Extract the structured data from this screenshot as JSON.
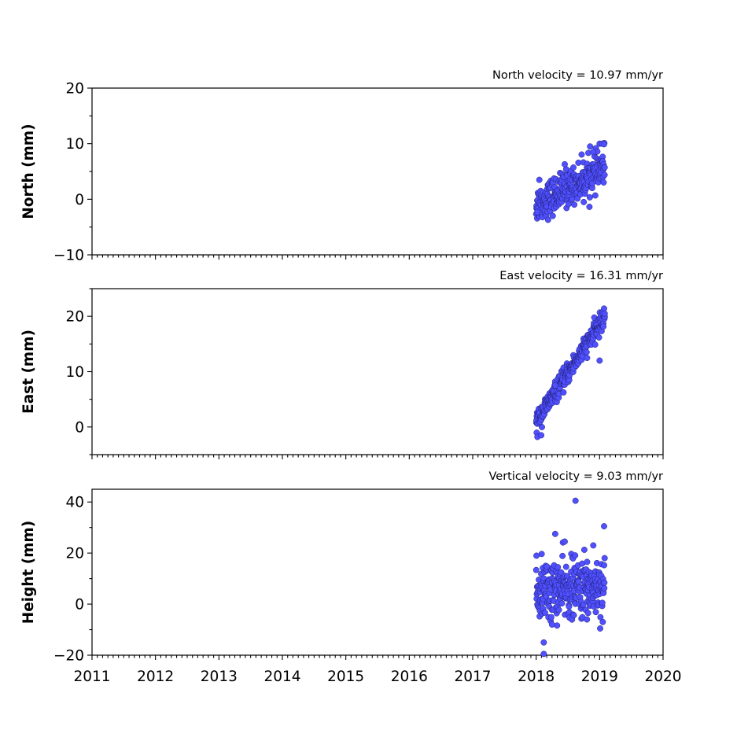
{
  "colors": {
    "marker_fill": "#5050ff",
    "marker_edge": "#20207a"
  },
  "chart_data": [
    {
      "type": "scatter",
      "title": "North velocity = 10.97 mm/yr",
      "ylabel": "North (mm)",
      "xlim": [
        2011,
        2020
      ],
      "ylim": [
        -10,
        20
      ],
      "yticks": [
        -10,
        0,
        10,
        20
      ],
      "ytick_labels": [
        "−10",
        "0",
        "10",
        "20"
      ],
      "xticks": [
        2011,
        2012,
        2013,
        2014,
        2015,
        2016,
        2017,
        2018,
        2019,
        2020
      ],
      "xtick_labels": [],
      "grid": false,
      "trend": {
        "start": 2018.0,
        "end": 2019.08,
        "y0": -1.0,
        "rate": 6.2,
        "noise": 1.6
      },
      "outliers": {
        "x": [
          2018.85,
          2019.0,
          2019.04,
          2019.07,
          2018.9,
          2018.45,
          2018.75,
          2018.05,
          2018.02
        ],
        "y": [
          9.5,
          10.0,
          10.0,
          9.9,
          8.5,
          6.3,
          -0.5,
          3.5,
          -2.3
        ]
      }
    },
    {
      "type": "scatter",
      "title": "East velocity = 16.31 mm/yr",
      "ylabel": "East (mm)",
      "xlim": [
        2011,
        2020
      ],
      "ylim": [
        -5,
        25
      ],
      "yticks": [
        0,
        10,
        20
      ],
      "ytick_labels": [
        "0",
        "10",
        "20"
      ],
      "xticks": [
        2011,
        2012,
        2013,
        2014,
        2015,
        2016,
        2017,
        2018,
        2019,
        2020
      ],
      "xtick_labels": [],
      "grid": false,
      "trend": {
        "start": 2018.0,
        "end": 2019.08,
        "y0": 1.0,
        "rate": 17.5,
        "noise": 0.9
      },
      "outliers": {
        "x": [
          2018.02,
          2018.08,
          2019.0,
          2019.07,
          2019.08,
          2018.3
        ],
        "y": [
          -1.8,
          -1.5,
          12.0,
          21.4,
          20.5,
          7.5
        ]
      }
    },
    {
      "type": "scatter",
      "title": "Vertical velocity = 9.03 mm/yr",
      "ylabel": "Height (mm)",
      "xlim": [
        2011,
        2020
      ],
      "ylim": [
        -20,
        45
      ],
      "yticks": [
        -20,
        0,
        20,
        40
      ],
      "ytick_labels": [
        "−20",
        "0",
        "20",
        "40"
      ],
      "xticks": [
        2011,
        2012,
        2013,
        2014,
        2015,
        2016,
        2017,
        2018,
        2019,
        2020
      ],
      "xtick_labels": [
        "2011",
        "2012",
        "2013",
        "2014",
        "2015",
        "2016",
        "2017",
        "2018",
        "2019",
        "2020"
      ],
      "grid": false,
      "trend": {
        "start": 2018.0,
        "end": 2019.08,
        "y0": 5.0,
        "rate": 2.0,
        "noise": 5.8
      },
      "outliers": {
        "x": [
          2018.62,
          2019.07,
          2018.3,
          2018.12,
          2018.12,
          2018.45,
          2018.25,
          2018.9,
          2019.05,
          2018.8
        ],
        "y": [
          40.5,
          30.5,
          27.5,
          -15.0,
          -19.5,
          24.5,
          -8.0,
          23.0,
          -7.0,
          -6.0
        ]
      }
    }
  ]
}
